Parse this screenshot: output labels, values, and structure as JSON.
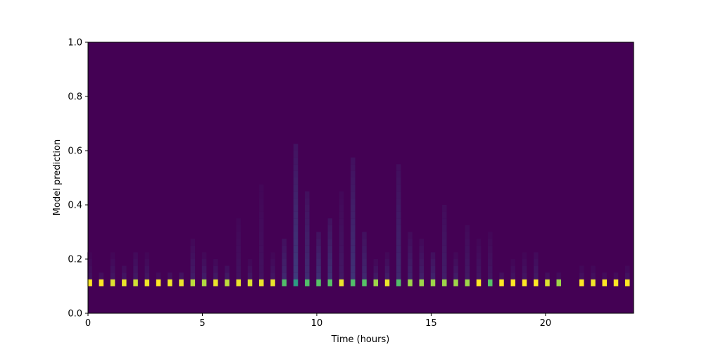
{
  "chart_data": {
    "type": "heatmap",
    "title": "",
    "xlabel": "Time (hours)",
    "ylabel": "Model prediction",
    "xlim": [
      0,
      23.85
    ],
    "ylim": [
      0,
      1
    ],
    "xticks": [
      0,
      5,
      10,
      15,
      20
    ],
    "xtick_labels": [
      "0",
      "5",
      "10",
      "15",
      "20"
    ],
    "yticks": [
      0,
      0.2,
      0.4,
      0.6,
      0.8,
      1.0
    ],
    "ytick_labels": [
      "0.0",
      "0.2",
      "0.4",
      "0.6",
      "0.8",
      "1.0"
    ],
    "colormap": "viridis",
    "background_color": "#440154",
    "bin_width_hours": 0.25,
    "bin_height": 0.025,
    "column_times": [
      0.08,
      0.58,
      1.08,
      1.58,
      2.08,
      2.58,
      3.08,
      3.58,
      4.08,
      4.58,
      5.08,
      5.58,
      6.08,
      6.58,
      7.08,
      7.58,
      8.08,
      8.58,
      9.08,
      9.58,
      10.08,
      10.58,
      11.08,
      11.58,
      12.08,
      12.58,
      13.08,
      13.58,
      14.08,
      14.58,
      15.08,
      15.58,
      16.08,
      16.58,
      17.08,
      17.58,
      18.08,
      18.58,
      19.08,
      19.58,
      20.08,
      20.58,
      21.58,
      22.08,
      22.58,
      23.08,
      23.58
    ],
    "peak_bin": [
      0.1,
      0.125
    ],
    "peak_intensity": [
      1,
      1,
      0.95,
      0.97,
      0.93,
      0.98,
      1,
      0.98,
      0.97,
      0.9,
      0.88,
      0.97,
      0.9,
      0.97,
      0.95,
      0.97,
      0.97,
      0.7,
      0.55,
      0.7,
      0.72,
      0.72,
      0.97,
      0.7,
      0.72,
      0.85,
      0.97,
      0.7,
      0.85,
      0.85,
      0.85,
      0.85,
      0.85,
      0.85,
      1,
      0.72,
      1,
      1,
      1,
      1,
      0.95,
      0.85,
      1,
      0.98,
      1,
      1,
      1
    ],
    "tail_top": [
      0.2,
      0.15,
      0.2,
      0.17,
      0.22,
      0.2,
      0.15,
      0.15,
      0.15,
      0.25,
      0.2,
      0.18,
      0.17,
      0.35,
      0.18,
      0.47,
      0.2,
      0.27,
      0.62,
      0.45,
      0.3,
      0.35,
      0.43,
      0.57,
      0.3,
      0.18,
      0.2,
      0.55,
      0.28,
      0.25,
      0.22,
      0.4,
      0.2,
      0.32,
      0.25,
      0.28,
      0.15,
      0.18,
      0.2,
      0.22,
      0.15,
      0.15,
      0.16,
      0.16,
      0.14,
      0.14,
      0.16
    ],
    "tail_intensity": [
      0.05,
      0.04,
      0.06,
      0.06,
      0.07,
      0.06,
      0.03,
      0.04,
      0.05,
      0.08,
      0.08,
      0.07,
      0.07,
      0.05,
      0.06,
      0.05,
      0.06,
      0.12,
      0.18,
      0.13,
      0.14,
      0.14,
      0.07,
      0.15,
      0.12,
      0.07,
      0.08,
      0.12,
      0.1,
      0.09,
      0.1,
      0.09,
      0.08,
      0.07,
      0.06,
      0.06,
      0.04,
      0.05,
      0.06,
      0.07,
      0.04,
      0.03,
      0.04,
      0.04,
      0.03,
      0.03,
      0.05
    ]
  }
}
